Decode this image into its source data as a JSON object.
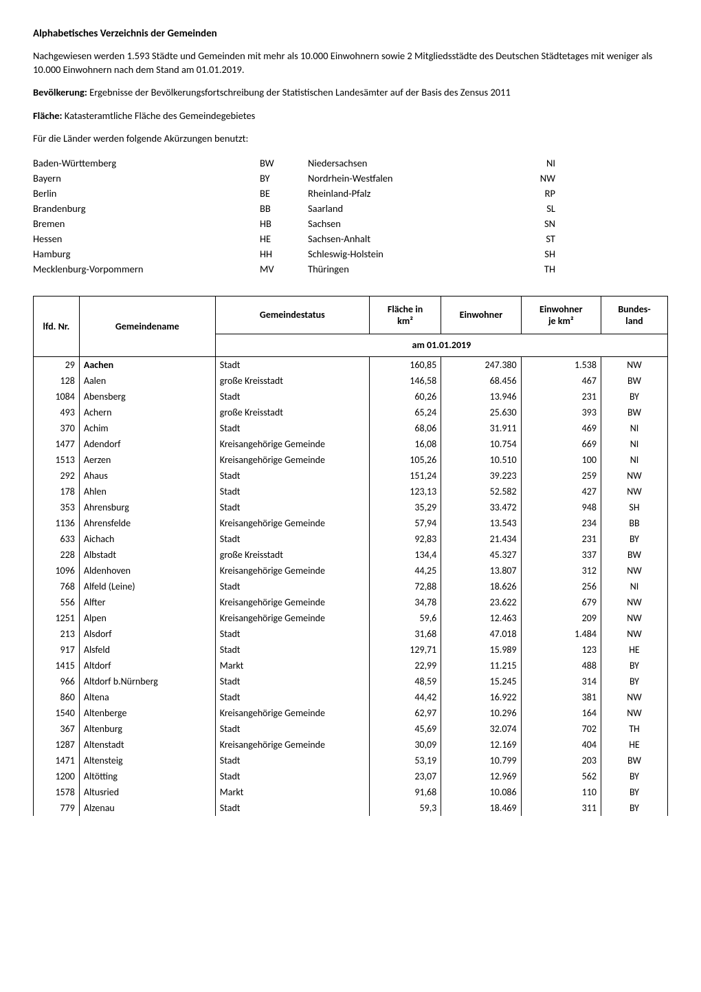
{
  "title": "Alphabetisches Verzeichnis der Gemeinden",
  "intro": {
    "p1": "Nachgewiesen werden 1.593 Städte und Gemeinden mit mehr als 10.000 Einwohnern sowie 2 Mitgliedsstädte des Deutschen Städtetages mit weniger als 10.000 Einwohnern nach dem Stand am 01.01.2019.",
    "p2_label": "Bevölkerung:",
    "p2_rest": " Ergebnisse der Bevölkerungsfortschreibung der Statistischen Landesämter auf der Basis des Zensus 2011",
    "p3_label": "Fläche:",
    "p3_rest": " Katasteramtliche Fläche des Gemeindegebietes",
    "p4": "Für die Länder werden folgende Akürzungen benutzt:"
  },
  "abbrevs": [
    {
      "l": "Baden-Württemberg",
      "lc": "BW",
      "r": "Niedersachsen",
      "rc": "NI"
    },
    {
      "l": "Bayern",
      "lc": "BY",
      "r": "Nordrhein-Westfalen",
      "rc": "NW"
    },
    {
      "l": "Berlin",
      "lc": "BE",
      "r": "Rheinland-Pfalz",
      "rc": "RP"
    },
    {
      "l": "Brandenburg",
      "lc": "BB",
      "r": "Saarland",
      "rc": "SL"
    },
    {
      "l": "Bremen",
      "lc": "HB",
      "r": "Sachsen",
      "rc": "SN"
    },
    {
      "l": "Hessen",
      "lc": "HE",
      "r": "Sachsen-Anhalt",
      "rc": "ST"
    },
    {
      "l": "Hamburg",
      "lc": "HH",
      "r": "Schleswig-Holstein",
      "rc": "SH"
    },
    {
      "l": "Mecklenburg-Vorpommern",
      "lc": "MV",
      "r": "Thüringen",
      "rc": "TH"
    }
  ],
  "table": {
    "headers": {
      "nr": "lfd. Nr.",
      "name": "Gemeindename",
      "status": "Gemeindestatus",
      "flaeche_l1": "Fläche in",
      "flaeche_l2": "km²",
      "einwohner": "Einwohner",
      "ewkm_l1": "Einwohner",
      "ewkm_l2": "je km²",
      "land_l1": "Bundes-",
      "land_l2": "land",
      "subheader": "am 01.01.2019"
    },
    "rows": [
      {
        "nr": "29",
        "name": "Aachen",
        "bold": true,
        "status": "Stadt",
        "fl": "160,85",
        "ew": "247.380",
        "ewkm": "1.538",
        "land": "NW"
      },
      {
        "nr": "128",
        "name": "Aalen",
        "bold": false,
        "status": "große Kreisstadt",
        "fl": "146,58",
        "ew": "68.456",
        "ewkm": "467",
        "land": "BW"
      },
      {
        "nr": "1084",
        "name": "Abensberg",
        "bold": false,
        "status": "Stadt",
        "fl": "60,26",
        "ew": "13.946",
        "ewkm": "231",
        "land": "BY"
      },
      {
        "nr": "493",
        "name": "Achern",
        "bold": false,
        "status": "große Kreisstadt",
        "fl": "65,24",
        "ew": "25.630",
        "ewkm": "393",
        "land": "BW"
      },
      {
        "nr": "370",
        "name": "Achim",
        "bold": false,
        "status": "Stadt",
        "fl": "68,06",
        "ew": "31.911",
        "ewkm": "469",
        "land": "NI"
      },
      {
        "nr": "1477",
        "name": "Adendorf",
        "bold": false,
        "status": "Kreisangehörige Gemeinde",
        "fl": "16,08",
        "ew": "10.754",
        "ewkm": "669",
        "land": "NI"
      },
      {
        "nr": "1513",
        "name": "Aerzen",
        "bold": false,
        "status": "Kreisangehörige Gemeinde",
        "fl": "105,26",
        "ew": "10.510",
        "ewkm": "100",
        "land": "NI"
      },
      {
        "nr": "292",
        "name": "Ahaus",
        "bold": false,
        "status": "Stadt",
        "fl": "151,24",
        "ew": "39.223",
        "ewkm": "259",
        "land": "NW"
      },
      {
        "nr": "178",
        "name": "Ahlen",
        "bold": false,
        "status": "Stadt",
        "fl": "123,13",
        "ew": "52.582",
        "ewkm": "427",
        "land": "NW"
      },
      {
        "nr": "353",
        "name": "Ahrensburg",
        "bold": false,
        "status": "Stadt",
        "fl": "35,29",
        "ew": "33.472",
        "ewkm": "948",
        "land": "SH"
      },
      {
        "nr": "1136",
        "name": "Ahrensfelde",
        "bold": false,
        "status": "Kreisangehörige Gemeinde",
        "fl": "57,94",
        "ew": "13.543",
        "ewkm": "234",
        "land": "BB"
      },
      {
        "nr": "633",
        "name": "Aichach",
        "bold": false,
        "status": "Stadt",
        "fl": "92,83",
        "ew": "21.434",
        "ewkm": "231",
        "land": "BY"
      },
      {
        "nr": "228",
        "name": "Albstadt",
        "bold": false,
        "status": "große Kreisstadt",
        "fl": "134,4",
        "ew": "45.327",
        "ewkm": "337",
        "land": "BW"
      },
      {
        "nr": "1096",
        "name": "Aldenhoven",
        "bold": false,
        "status": "Kreisangehörige Gemeinde",
        "fl": "44,25",
        "ew": "13.807",
        "ewkm": "312",
        "land": "NW"
      },
      {
        "nr": "768",
        "name": "Alfeld (Leine)",
        "bold": false,
        "status": "Stadt",
        "fl": "72,88",
        "ew": "18.626",
        "ewkm": "256",
        "land": "NI"
      },
      {
        "nr": "556",
        "name": "Alfter",
        "bold": false,
        "status": "Kreisangehörige Gemeinde",
        "fl": "34,78",
        "ew": "23.622",
        "ewkm": "679",
        "land": "NW"
      },
      {
        "nr": "1251",
        "name": "Alpen",
        "bold": false,
        "status": "Kreisangehörige Gemeinde",
        "fl": "59,6",
        "ew": "12.463",
        "ewkm": "209",
        "land": "NW"
      },
      {
        "nr": "213",
        "name": "Alsdorf",
        "bold": false,
        "status": "Stadt",
        "fl": "31,68",
        "ew": "47.018",
        "ewkm": "1.484",
        "land": "NW"
      },
      {
        "nr": "917",
        "name": "Alsfeld",
        "bold": false,
        "status": "Stadt",
        "fl": "129,71",
        "ew": "15.989",
        "ewkm": "123",
        "land": "HE"
      },
      {
        "nr": "1415",
        "name": "Altdorf",
        "bold": false,
        "status": "Markt",
        "fl": "22,99",
        "ew": "11.215",
        "ewkm": "488",
        "land": "BY"
      },
      {
        "nr": "966",
        "name": "Altdorf b.Nürnberg",
        "bold": false,
        "status": "Stadt",
        "fl": "48,59",
        "ew": "15.245",
        "ewkm": "314",
        "land": "BY"
      },
      {
        "nr": "860",
        "name": "Altena",
        "bold": false,
        "status": "Stadt",
        "fl": "44,42",
        "ew": "16.922",
        "ewkm": "381",
        "land": "NW"
      },
      {
        "nr": "1540",
        "name": "Altenberge",
        "bold": false,
        "status": "Kreisangehörige Gemeinde",
        "fl": "62,97",
        "ew": "10.296",
        "ewkm": "164",
        "land": "NW"
      },
      {
        "nr": "367",
        "name": "Altenburg",
        "bold": false,
        "status": "Stadt",
        "fl": "45,69",
        "ew": "32.074",
        "ewkm": "702",
        "land": "TH"
      },
      {
        "nr": "1287",
        "name": "Altenstadt",
        "bold": false,
        "status": "Kreisangehörige Gemeinde",
        "fl": "30,09",
        "ew": "12.169",
        "ewkm": "404",
        "land": "HE"
      },
      {
        "nr": "1471",
        "name": "Altensteig",
        "bold": false,
        "status": "Stadt",
        "fl": "53,19",
        "ew": "10.799",
        "ewkm": "203",
        "land": "BW"
      },
      {
        "nr": "1200",
        "name": "Altötting",
        "bold": false,
        "status": "Stadt",
        "fl": "23,07",
        "ew": "12.969",
        "ewkm": "562",
        "land": "BY"
      },
      {
        "nr": "1578",
        "name": "Altusried",
        "bold": false,
        "status": "Markt",
        "fl": "91,68",
        "ew": "10.086",
        "ewkm": "110",
        "land": "BY"
      },
      {
        "nr": "779",
        "name": "Alzenau",
        "bold": false,
        "status": "Stadt",
        "fl": "59,3",
        "ew": "18.469",
        "ewkm": "311",
        "land": "BY"
      }
    ]
  }
}
